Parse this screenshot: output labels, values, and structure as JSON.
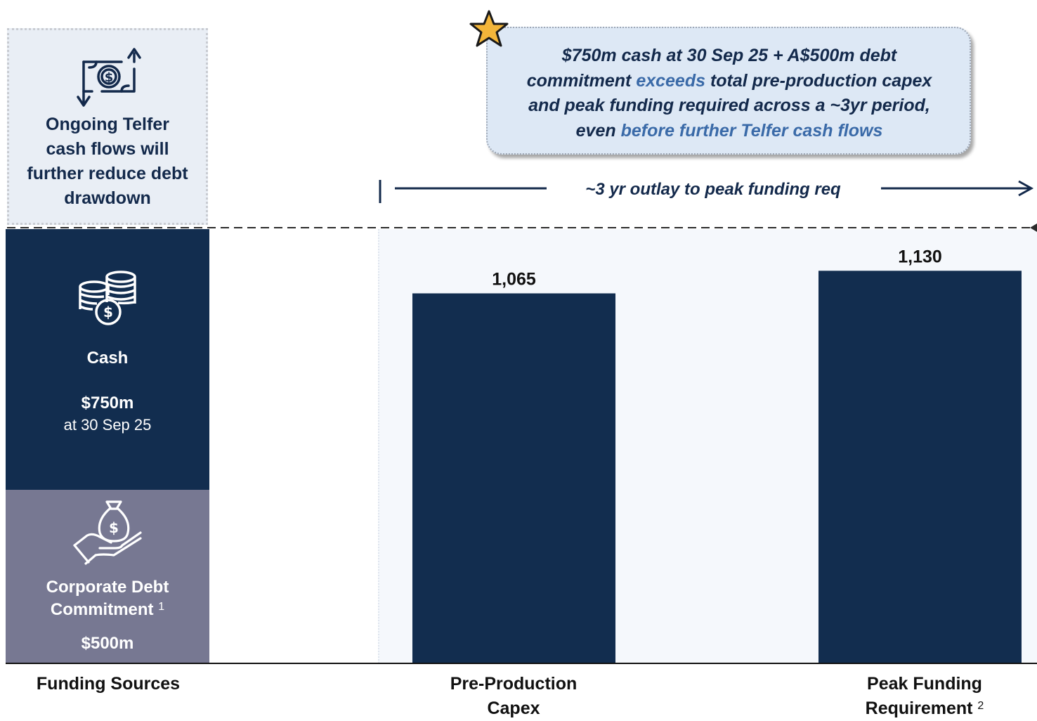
{
  "callout": {
    "line1": "$750m cash at 30 Sep 25 + A$500m debt",
    "line2_a": "commitment ",
    "line2_hl": "exceeds",
    "line2_b": " total pre-production capex",
    "line3": "and peak funding required across a ~3yr period,",
    "line4_a": "even ",
    "line4_hl": "before further Telfer cash flows"
  },
  "telfer_note": {
    "line1": "Ongoing Telfer",
    "line2": "cash flows will",
    "line3": "further reduce debt",
    "line4": "drawdown"
  },
  "outlay_label": "~3 yr outlay to peak funding req",
  "funding_sources": {
    "cash": {
      "label": "Cash",
      "amount": "$750m",
      "note": "at 30 Sep 25",
      "value": 750
    },
    "debt": {
      "label_line1": "Corporate Debt",
      "label_line2": "Commitment",
      "footnote": "1",
      "amount": "$500m",
      "value": 500
    }
  },
  "colors": {
    "navy": "#122d4f",
    "debt_grey": "#777892",
    "highlight": "#3a6aa8",
    "star": "#f2b53a"
  },
  "icons": [
    "money-transfer-icon",
    "coins-dollar-icon",
    "hand-money-bag-icon",
    "star-icon"
  ],
  "chart_data": {
    "type": "bar",
    "categories": [
      "Funding Sources",
      "Pre-Production Capex",
      "Peak Funding Requirement"
    ],
    "category_labels": [
      {
        "line1": "Funding Sources",
        "line2": ""
      },
      {
        "line1": "Pre-Production",
        "line2": "Capex"
      },
      {
        "line1": "Peak Funding",
        "line2": "Requirement",
        "footnote": "2"
      }
    ],
    "stacked_sources": [
      {
        "name": "Cash",
        "value": 750
      },
      {
        "name": "Corporate Debt Commitment",
        "value": 500
      }
    ],
    "values": [
      1250,
      1065,
      1130
    ],
    "data_labels": [
      "",
      "1,065",
      "1,130"
    ],
    "ylim": [
      0,
      1250
    ],
    "grid": false
  }
}
